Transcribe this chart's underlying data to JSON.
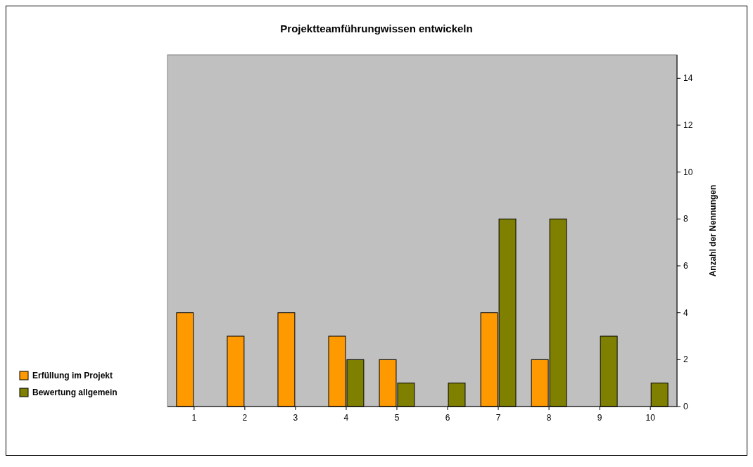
{
  "chart_data": {
    "type": "bar",
    "title": "Projektteamführungwissen entwickeln",
    "ylabel": "Anzahl der Nennungen",
    "categories": [
      "1",
      "2",
      "3",
      "4",
      "5",
      "6",
      "7",
      "8",
      "9",
      "10"
    ],
    "series": [
      {
        "name": "Erfüllung im Projekt",
        "color": "#ff9900",
        "values": [
          4,
          3,
          4,
          3,
          2,
          0,
          4,
          2,
          0,
          0
        ]
      },
      {
        "name": "Bewertung allgemein",
        "color": "#808000",
        "values": [
          0,
          0,
          0,
          2,
          1,
          1,
          8,
          8,
          3,
          1
        ]
      }
    ],
    "ylim": [
      0,
      15
    ],
    "yticks": [
      0,
      2,
      4,
      6,
      8,
      10,
      12,
      14
    ],
    "grid": false,
    "legend": "bottom left"
  }
}
